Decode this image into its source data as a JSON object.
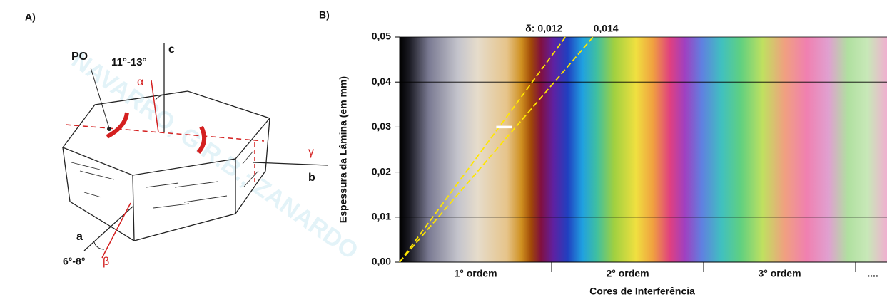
{
  "panel_a": {
    "label": "A)",
    "labels": {
      "po": "PO",
      "angle_c": "11°-13°",
      "c": "c",
      "alpha": "α",
      "gamma": "γ",
      "b": "b",
      "a": "a",
      "angle_a": "6°-8°",
      "beta": "β"
    },
    "watermark": "NAVARRO, G.R.B.; ZANARDO"
  },
  "chart_data": {
    "type": "interference",
    "panel_label": "B)",
    "ylabel": "Espessura da Lâmina (em mm)",
    "xlabel": "Cores de Interferência",
    "ylim": [
      0,
      0.05
    ],
    "yticks": [
      {
        "value": 0,
        "label": "0,00"
      },
      {
        "value": 0.01,
        "label": "0,01"
      },
      {
        "value": 0.02,
        "label": "0,02"
      },
      {
        "value": 0.03,
        "label": "0,03"
      },
      {
        "value": 0.04,
        "label": "0,04"
      },
      {
        "value": 0.05,
        "label": "0,05"
      }
    ],
    "grid": true,
    "orders": [
      "1° ordem",
      "2° ordem",
      "3° ordem",
      "...."
    ],
    "lines": [
      {
        "value": 0.012,
        "label": "δ: 0,012"
      },
      {
        "value": 0.014,
        "label": "0,014"
      }
    ],
    "line_color": "#ffe600"
  }
}
